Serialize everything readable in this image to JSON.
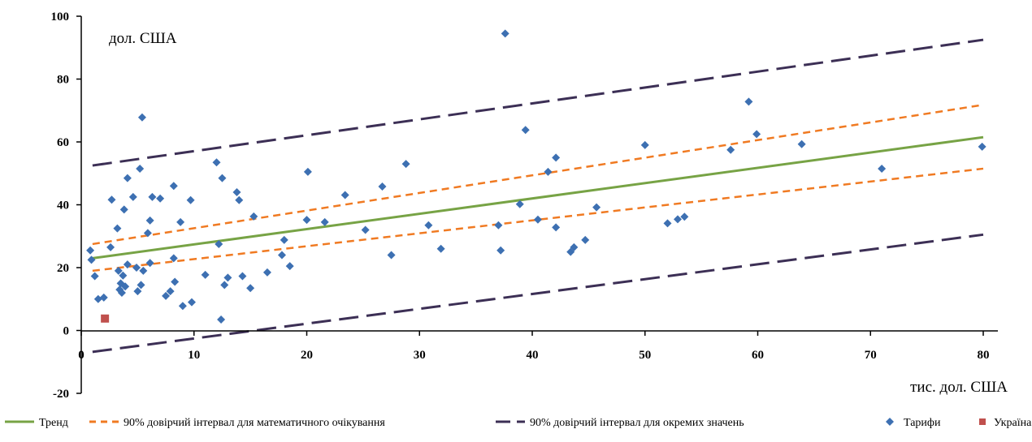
{
  "chart_data": {
    "type": "scatter",
    "y_unit_label": "дол. США",
    "x_unit_label": "тис. дол. США",
    "xlim": [
      0,
      80
    ],
    "ylim": [
      -20,
      100
    ],
    "x_ticks": [
      0,
      10,
      20,
      30,
      40,
      50,
      60,
      70,
      80
    ],
    "y_ticks": [
      -20,
      0,
      20,
      40,
      60,
      80,
      100
    ],
    "x_tick_labels": [
      "0",
      "10",
      "20",
      "30",
      "40",
      "50",
      "60",
      "70",
      "80"
    ],
    "y_tick_labels": [
      "-20",
      "0",
      "20",
      "40",
      "60",
      "80",
      "100"
    ],
    "grid": false,
    "legend_position": "bottom",
    "lines": [
      {
        "name": "Тренд",
        "style": "solid",
        "color": "#77a345",
        "x": [
          1,
          80
        ],
        "y": [
          23,
          61.5
        ]
      },
      {
        "name": "90% довірчий інтервал для математичного очікування",
        "style": "dashed",
        "color": "#f07a22",
        "x": [
          1,
          80
        ],
        "y": [
          27.5,
          71.8
        ]
      },
      {
        "name": "90% довірчий інтервал для математичного очікування",
        "style": "dashed",
        "color": "#f07a22",
        "x": [
          1,
          80
        ],
        "y": [
          19,
          51.5
        ]
      },
      {
        "name": "90% довірчий інтервал для окремих значень",
        "style": "longdash",
        "color": "#3c2f55",
        "x": [
          1,
          80
        ],
        "y": [
          52.5,
          92.5
        ]
      },
      {
        "name": "90% довірчий інтервал для окремих значень",
        "style": "longdash",
        "color": "#3c2f55",
        "x": [
          1,
          80
        ],
        "y": [
          -6.8,
          30.5
        ]
      }
    ],
    "series": [
      {
        "name": "Тарифи",
        "marker": "diamond",
        "color": "#3d70b2",
        "points": [
          [
            0.8,
            25.5
          ],
          [
            0.9,
            22.5
          ],
          [
            1.2,
            17.3
          ],
          [
            1.5,
            10
          ],
          [
            2,
            10.5
          ],
          [
            2.6,
            26.5
          ],
          [
            2.7,
            41.6
          ],
          [
            3.2,
            32.5
          ],
          [
            3.3,
            19
          ],
          [
            3.4,
            13
          ],
          [
            3.5,
            15
          ],
          [
            3.6,
            12
          ],
          [
            3.7,
            17.5
          ],
          [
            3.8,
            38.5
          ],
          [
            3.9,
            14
          ],
          [
            4.1,
            48.5
          ],
          [
            4.1,
            21
          ],
          [
            4.6,
            42.5
          ],
          [
            4.9,
            20
          ],
          [
            5.0,
            12.5
          ],
          [
            5.2,
            51.5
          ],
          [
            5.3,
            14.5
          ],
          [
            5.4,
            67.8
          ],
          [
            5.5,
            19
          ],
          [
            5.9,
            31
          ],
          [
            6.1,
            35
          ],
          [
            6.1,
            21.5
          ],
          [
            6.3,
            42.5
          ],
          [
            7,
            42
          ],
          [
            7.5,
            11
          ],
          [
            7.9,
            12.5
          ],
          [
            8.2,
            23
          ],
          [
            8.2,
            46
          ],
          [
            8.3,
            15.5
          ],
          [
            8.8,
            34.5
          ],
          [
            9.0,
            7.8
          ],
          [
            9.7,
            41.5
          ],
          [
            9.8,
            9
          ],
          [
            11.0,
            17.7
          ],
          [
            12.0,
            53.5
          ],
          [
            12.2,
            27.5
          ],
          [
            12.4,
            3.5
          ],
          [
            12.5,
            48.5
          ],
          [
            12.7,
            14.5
          ],
          [
            13.0,
            16.8
          ],
          [
            13.8,
            44
          ],
          [
            14.0,
            41.5
          ],
          [
            14.3,
            17.3
          ],
          [
            15.0,
            13.5
          ],
          [
            15.3,
            36.3
          ],
          [
            16.5,
            18.5
          ],
          [
            17.8,
            24
          ],
          [
            18.0,
            28.8
          ],
          [
            18.5,
            20.5
          ],
          [
            20.0,
            35.2
          ],
          [
            20.1,
            50.5
          ],
          [
            21.6,
            34.5
          ],
          [
            23.4,
            43.1
          ],
          [
            25.2,
            32
          ],
          [
            26.7,
            45.8
          ],
          [
            27.5,
            24
          ],
          [
            28.8,
            53
          ],
          [
            30.8,
            33.5
          ],
          [
            31.9,
            26
          ],
          [
            37.0,
            33.5
          ],
          [
            37.2,
            25.5
          ],
          [
            37.6,
            94.5
          ],
          [
            38.9,
            40.2
          ],
          [
            39.4,
            63.8
          ],
          [
            40.5,
            35.3
          ],
          [
            41.4,
            50.5
          ],
          [
            42.1,
            55
          ],
          [
            42.1,
            32.8
          ],
          [
            43.4,
            25
          ],
          [
            43.7,
            26.5
          ],
          [
            44.7,
            28.8
          ],
          [
            45.7,
            39.2
          ],
          [
            50.0,
            59
          ],
          [
            52.0,
            34.1
          ],
          [
            52.9,
            35.4
          ],
          [
            53.5,
            36.2
          ],
          [
            57.6,
            57.5
          ],
          [
            59.2,
            72.8
          ],
          [
            59.9,
            62.5
          ],
          [
            63.9,
            59.3
          ],
          [
            71.0,
            51.5
          ],
          [
            79.9,
            58.5
          ]
        ]
      },
      {
        "name": "Україна",
        "marker": "square",
        "color": "#c0504d",
        "points": [
          [
            2.1,
            3.8
          ]
        ]
      }
    ]
  }
}
